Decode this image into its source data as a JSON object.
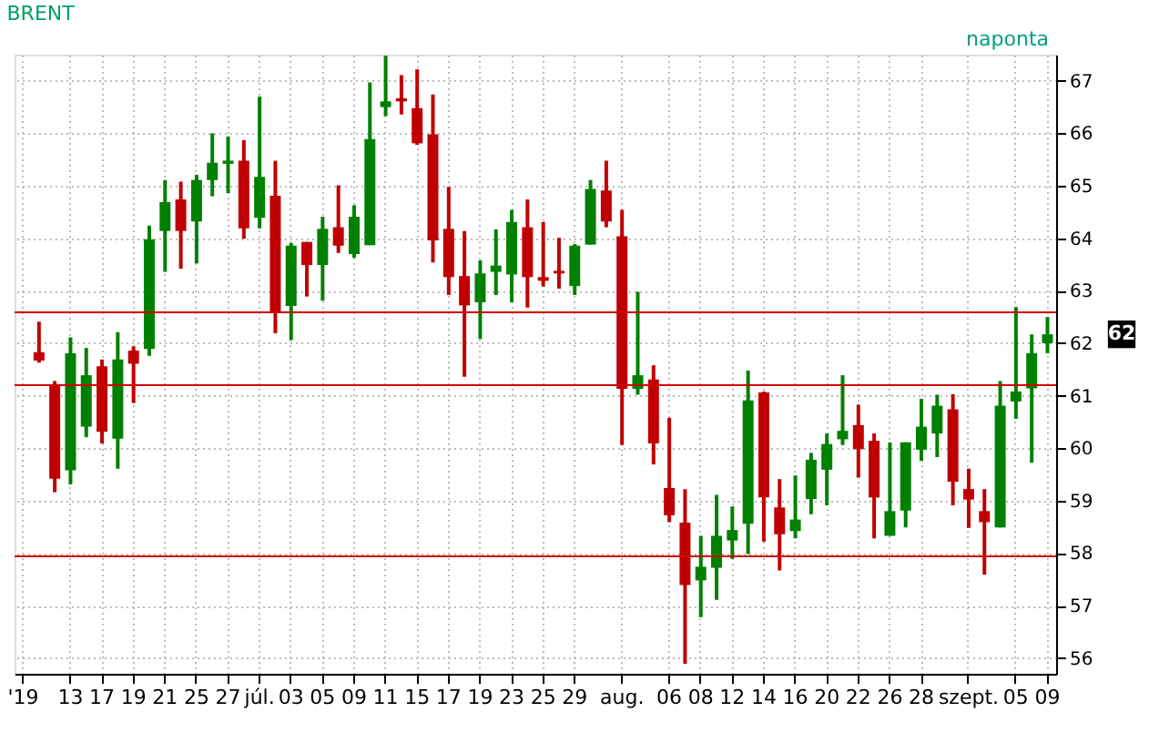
{
  "chart_data": {
    "type": "candlestick",
    "title": "BRENT",
    "annotations": [
      "naponta",
      "62"
    ],
    "categories": [
      "'19",
      null,
      null,
      "13",
      null,
      "17",
      null,
      "19",
      null,
      "21",
      null,
      "25",
      null,
      "27",
      null,
      "júl.",
      null,
      "03",
      null,
      "05",
      null,
      "09",
      null,
      "11",
      null,
      "15",
      null,
      "17",
      null,
      "19",
      null,
      "23",
      null,
      "25",
      null,
      "29",
      null,
      null,
      "aug.",
      null,
      null,
      "06",
      null,
      "08",
      null,
      "12",
      null,
      "14",
      null,
      "16",
      null,
      "20",
      null,
      "22",
      null,
      "26",
      null,
      "28",
      null,
      null,
      "szept.",
      null,
      null,
      "05",
      null,
      "09"
    ],
    "ohlc": [
      null,
      [
        61.83,
        62.41,
        61.63,
        61.67
      ],
      [
        61.22,
        61.28,
        59.16,
        59.42
      ],
      [
        59.58,
        62.11,
        59.31,
        61.81
      ],
      [
        60.41,
        61.91,
        60.21,
        61.39
      ],
      [
        61.56,
        61.69,
        60.09,
        60.31
      ],
      [
        60.18,
        62.21,
        59.61,
        61.69
      ],
      [
        61.86,
        61.94,
        60.86,
        61.61
      ],
      [
        61.89,
        64.24,
        61.76,
        63.98
      ],
      [
        64.14,
        65.11,
        63.36,
        64.69
      ],
      [
        64.74,
        65.08,
        63.42,
        64.14
      ],
      [
        64.32,
        65.21,
        63.52,
        65.11
      ],
      [
        65.11,
        66.0,
        64.8,
        65.44
      ],
      [
        65.42,
        65.94,
        64.86,
        65.48
      ],
      [
        65.48,
        65.87,
        63.99,
        64.19
      ],
      [
        64.39,
        66.7,
        64.19,
        65.17
      ],
      [
        64.81,
        65.48,
        62.19,
        62.57
      ],
      [
        62.71,
        63.91,
        62.06,
        63.86
      ],
      [
        63.93,
        63.93,
        62.89,
        63.49
      ],
      [
        63.49,
        64.41,
        62.81,
        64.18
      ],
      [
        64.21,
        65.01,
        63.72,
        63.86
      ],
      [
        63.7,
        64.63,
        63.63,
        64.41
      ],
      [
        63.87,
        66.97,
        63.87,
        65.89
      ],
      [
        66.5,
        67.48,
        66.33,
        66.61
      ],
      [
        66.67,
        67.11,
        66.36,
        66.61
      ],
      [
        66.48,
        67.22,
        65.78,
        65.81
      ],
      [
        65.98,
        66.74,
        63.54,
        63.96
      ],
      [
        64.18,
        64.98,
        62.92,
        63.26
      ],
      [
        63.28,
        64.14,
        61.36,
        62.72
      ],
      [
        62.78,
        63.58,
        62.08,
        63.33
      ],
      [
        63.36,
        64.17,
        62.92,
        63.48
      ],
      [
        63.31,
        64.54,
        62.78,
        64.31
      ],
      [
        64.21,
        64.74,
        62.68,
        63.26
      ],
      [
        63.26,
        64.31,
        63.08,
        63.19
      ],
      [
        63.38,
        64.01,
        63.04,
        63.33
      ],
      [
        63.09,
        63.89,
        62.92,
        63.86
      ],
      [
        63.88,
        65.11,
        63.88,
        64.94
      ],
      [
        64.91,
        65.48,
        64.21,
        64.32
      ],
      [
        64.04,
        64.54,
        60.06,
        61.13
      ],
      [
        61.13,
        62.98,
        61.02,
        61.39
      ],
      [
        61.31,
        61.58,
        59.69,
        60.09
      ],
      [
        59.24,
        60.58,
        58.59,
        58.72
      ],
      [
        58.58,
        59.22,
        55.89,
        57.39
      ],
      [
        57.48,
        58.33,
        56.78,
        57.74
      ],
      [
        57.72,
        59.11,
        57.11,
        58.33
      ],
      [
        58.24,
        58.89,
        57.89,
        58.44
      ],
      [
        58.56,
        61.48,
        57.98,
        60.91
      ],
      [
        61.06,
        61.08,
        58.22,
        59.06
      ],
      [
        58.87,
        59.41,
        57.67,
        58.36
      ],
      [
        58.42,
        59.48,
        58.28,
        58.64
      ],
      [
        59.03,
        59.91,
        58.74,
        59.78
      ],
      [
        59.59,
        60.28,
        58.91,
        60.08
      ],
      [
        60.17,
        61.39,
        60.06,
        60.33
      ],
      [
        60.44,
        60.83,
        59.44,
        59.98
      ],
      [
        60.14,
        60.28,
        58.28,
        59.06
      ],
      [
        58.33,
        60.11,
        58.33,
        58.8
      ],
      [
        58.81,
        60.11,
        58.49,
        60.11
      ],
      [
        59.97,
        60.94,
        59.76,
        60.41
      ],
      [
        60.28,
        61.02,
        59.83,
        60.81
      ],
      [
        60.74,
        61.03,
        58.91,
        59.36
      ],
      [
        59.22,
        59.61,
        58.48,
        59.02
      ],
      [
        58.8,
        59.22,
        57.59,
        58.59
      ],
      [
        58.49,
        61.28,
        58.49,
        60.81
      ],
      [
        60.89,
        62.69,
        60.56,
        61.08
      ],
      [
        61.14,
        62.17,
        59.72,
        61.81
      ],
      [
        62.0,
        62.5,
        61.81,
        62.17
      ]
    ],
    "colors": [
      null,
      "#c00000",
      "#c00000",
      "#008000",
      "#008000",
      "#c00000",
      "#008000",
      "#c00000",
      "#008000",
      "#008000",
      "#c00000",
      "#008000",
      "#008000",
      "#008000",
      "#c00000",
      "#008000",
      "#c00000",
      "#008000",
      "#c00000",
      "#008000",
      "#c00000",
      "#008000",
      "#008000",
      "#008000",
      "#c00000",
      "#c00000",
      "#c00000",
      "#c00000",
      "#c00000",
      "#008000",
      "#008000",
      "#008000",
      "#c00000",
      "#c00000",
      "#c00000",
      "#008000",
      "#008000",
      "#c00000",
      "#c00000",
      "#008000",
      "#c00000",
      "#c00000",
      "#c00000",
      "#008000",
      "#008000",
      "#008000",
      "#008000",
      "#c00000",
      "#c00000",
      "#008000",
      "#008000",
      "#008000",
      "#008000",
      "#c00000",
      "#c00000",
      "#008000",
      "#008000",
      "#008000",
      "#008000",
      "#c00000",
      "#c00000",
      "#c00000",
      "#008000",
      "#008000",
      "#008000",
      "#008000"
    ],
    "ylim": [
      55.7,
      67.5
    ],
    "yticks": [
      56,
      57,
      58,
      59,
      60,
      61,
      62,
      63,
      64,
      65,
      66,
      67
    ],
    "grid": true,
    "ref_lines": [
      {
        "axis": "y",
        "value": 62.59,
        "color": "#d00000"
      },
      {
        "axis": "y",
        "value": 61.2,
        "color": "#d00000"
      },
      {
        "axis": "y",
        "value": 57.94,
        "color": "#d00000"
      }
    ]
  }
}
